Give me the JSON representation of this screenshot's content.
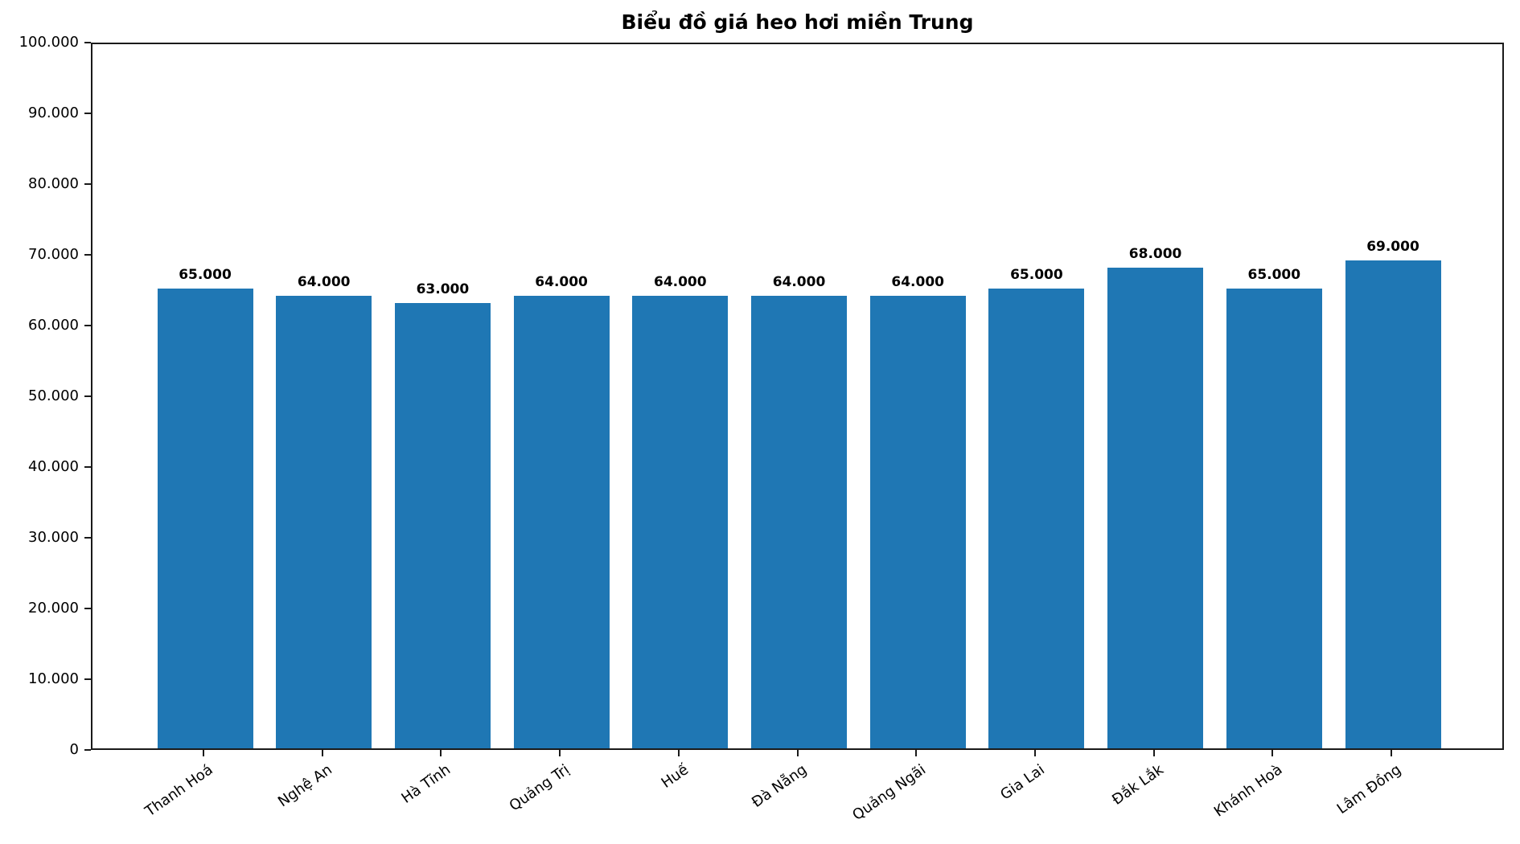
{
  "chart_data": {
    "type": "bar",
    "title": "Biểu đồ giá heo hơi miền Trung",
    "categories": [
      "Thanh Hoá",
      "Nghệ An",
      "Hà Tĩnh",
      "Quảng Trị",
      "Huế",
      "Đà Nẵng",
      "Quảng Ngãi",
      "Gia Lai",
      "Đắk Lắk",
      "Khánh Hoà",
      "Lâm Đồng"
    ],
    "values": [
      65000,
      64000,
      63000,
      64000,
      64000,
      64000,
      64000,
      65000,
      68000,
      65000,
      69000
    ],
    "value_labels": [
      "65.000",
      "64.000",
      "63.000",
      "64.000",
      "64.000",
      "64.000",
      "64.000",
      "65.000",
      "68.000",
      "65.000",
      "69.000"
    ],
    "xlabel": "",
    "ylabel": "",
    "ylim": [
      0,
      100000
    ],
    "ytick_values": [
      0,
      10000,
      20000,
      30000,
      40000,
      50000,
      60000,
      70000,
      80000,
      90000,
      100000
    ],
    "ytick_labels": [
      "0",
      "10.000",
      "20.000",
      "30.000",
      "40.000",
      "50.000",
      "60.000",
      "70.000",
      "80.000",
      "90.000",
      "100.000"
    ],
    "bar_color": "#1f77b4",
    "spine_color": "#1a1a1a",
    "text_color": "#000000",
    "background_color": "#ffffff",
    "grid": false,
    "legend": null
  }
}
